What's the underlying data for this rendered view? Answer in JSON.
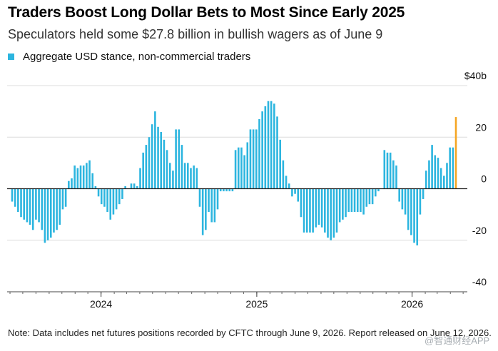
{
  "title": "Traders Boost Long Dollar Bets to Most Since Early 2025",
  "subtitle": "Speculators held some $27.8 billion in bullish wagers as of June 9",
  "note": "Note: Data includes net futures positions recorded by CFTC through June 9, 2026. Report released on June 12, 2026.",
  "watermark": "@智通财经APP",
  "colors": {
    "bar": "#2cb5df",
    "highlight": "#f5a623",
    "grid": "#dcdcdc",
    "axis": "#222222"
  },
  "chart_data": {
    "type": "bar",
    "legend": [
      {
        "name": "Aggregate USD stance, non-commercial traders",
        "color": "#2cb5df"
      }
    ],
    "legend_position": "top-left",
    "y_axis": {
      "ylim": [
        -40,
        40
      ],
      "ticks": [
        40,
        20,
        0,
        -20,
        -40
      ],
      "tick_labels": [
        "$40b",
        "20",
        "0",
        "-20",
        "-40"
      ],
      "side": "right"
    },
    "x_axis": {
      "tick_labels": [
        "2024",
        "2025",
        "2026"
      ],
      "tick_dates": [
        "2024-01-01",
        "2025-01-01",
        "2026-01-01"
      ]
    },
    "grid": true,
    "first_week": "2023-06-06",
    "last_week": "2026-06-09",
    "series": [
      {
        "name": "Aggregate USD stance, non-commercial traders",
        "values": [
          -5,
          -7,
          -9,
          -11,
          -12,
          -13,
          -14,
          -16,
          -12,
          -13,
          -16,
          -21,
          -20,
          -19,
          -17,
          -16,
          -14,
          -8,
          -7,
          3,
          4,
          9,
          8,
          9,
          9,
          10,
          11,
          6,
          1,
          -3,
          -6,
          -7,
          -9,
          -12,
          -10,
          -8,
          -6,
          -4,
          1,
          0,
          2,
          2,
          1,
          8,
          14,
          17,
          20,
          25,
          30,
          24,
          22,
          19,
          15,
          10,
          7,
          23,
          23,
          17,
          10,
          10,
          8,
          9,
          8,
          -7,
          -18,
          -16,
          -9,
          -13,
          -13,
          -8,
          -1,
          -1,
          -1,
          -1,
          -1,
          15,
          16,
          16,
          13,
          18,
          23,
          23,
          23,
          27,
          30,
          32,
          34,
          34,
          33,
          28,
          19,
          11,
          5,
          2,
          -3,
          -2,
          -5,
          -11,
          -17,
          -17,
          -17,
          -17,
          -15,
          -14,
          -15,
          -17,
          -19,
          -20,
          -19,
          -17,
          -13,
          -12,
          -11,
          -9,
          -9,
          -9,
          -9,
          -9,
          -10,
          -7,
          -6,
          -6,
          -3,
          -1,
          0,
          15,
          14,
          14,
          11,
          9,
          -5,
          -8,
          -10,
          -16,
          -18,
          -21,
          -22,
          -10,
          -4,
          7,
          11,
          17,
          13,
          12,
          8,
          5,
          10,
          16,
          16,
          27.8
        ]
      }
    ],
    "annotation": {
      "week": "2026-06-09",
      "value": 27.8
    }
  }
}
